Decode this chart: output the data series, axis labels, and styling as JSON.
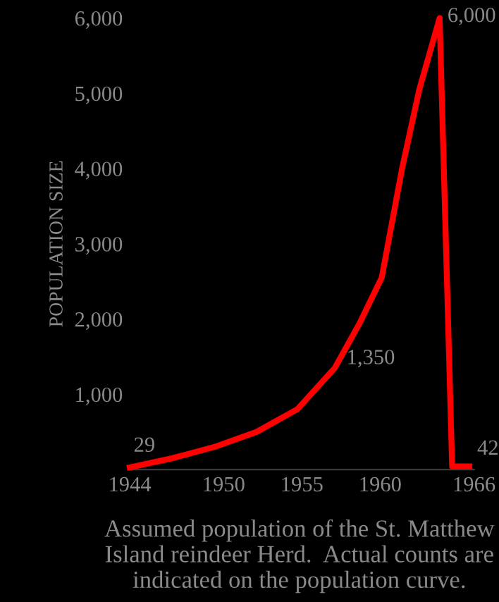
{
  "chart_data": {
    "type": "line",
    "ylabel": "POPULATION SIZE",
    "x": [
      1944,
      1946.7,
      1949.4,
      1952.1,
      1954.7,
      1957.1,
      1958.7,
      1960.1,
      1961.4,
      1962.5,
      1963.8,
      1964.6,
      1965.7
    ],
    "series": [
      {
        "color": "#ff0000",
        "values": [
          29,
          150,
          300,
          500,
          800,
          1350,
          1950,
          2550,
          4000,
          5050,
          6000,
          42,
          42
        ]
      }
    ],
    "xlim": [
      1944,
      1966
    ],
    "xticks": [
      1944,
      1950,
      1955,
      1960,
      1966
    ],
    "ylim": [
      0,
      6000
    ],
    "yticks": [
      {
        "value": 1000,
        "label": "1,000"
      },
      {
        "value": 2000,
        "label": "2,000"
      },
      {
        "value": 3000,
        "label": "3,000"
      },
      {
        "value": 4000,
        "label": "4,000"
      },
      {
        "value": 5000,
        "label": "5,000"
      },
      {
        "value": 6000,
        "label": "6,000"
      }
    ],
    "grid": false,
    "legend": false,
    "marker": "none",
    "line_style": "solid",
    "annotations": [
      {
        "text": "29",
        "x": 1944,
        "y": 29
      },
      {
        "text": "1,350",
        "x": 1957.1,
        "y": 1350
      },
      {
        "text": "6,000",
        "x": 1963.8,
        "y": 6000
      },
      {
        "text": "42",
        "x": 1965.7,
        "y": 42
      },
      "Assumed population of the St. Matthew Island reindeer Herd.  Actual counts are indicated on the population curve."
    ]
  }
}
